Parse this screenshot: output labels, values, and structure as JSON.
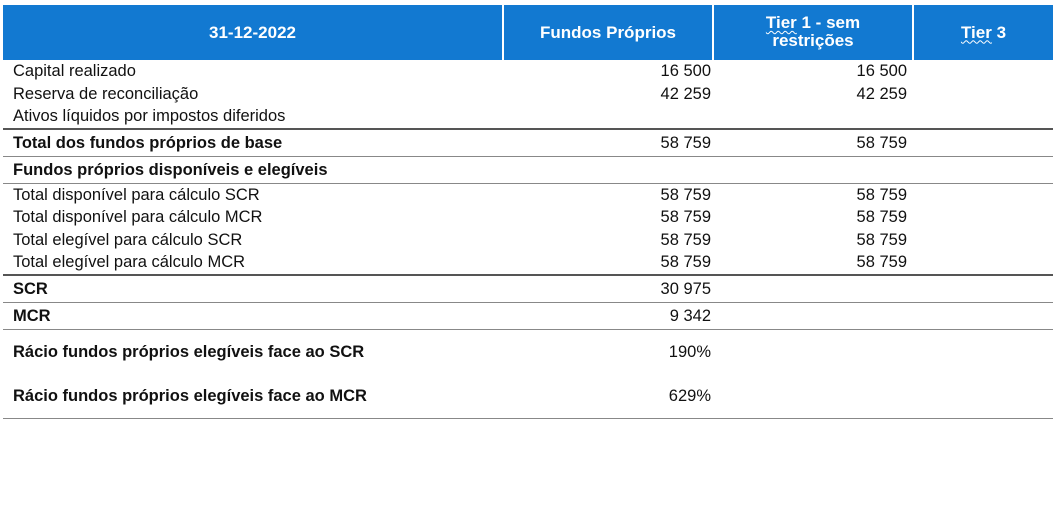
{
  "header": {
    "date": "31-12-2022",
    "col_fundos": "Fundos Próprios",
    "col_tier1": "Tier 1 - sem restrições",
    "col_tier3": "Tier 3"
  },
  "rows": [
    {
      "label": "Capital realizado",
      "fundos": "16 500",
      "tier1": "16 500",
      "tier3": ""
    },
    {
      "label": "Reserva de reconciliação",
      "fundos": "42 259",
      "tier1": "42 259",
      "tier3": ""
    },
    {
      "label": "Ativos líquidos por impostos diferidos",
      "fundos": "",
      "tier1": "",
      "tier3": ""
    },
    {
      "label": "Total dos fundos próprios de base",
      "fundos": "58 759",
      "tier1": "58 759",
      "tier3": ""
    },
    {
      "label": "Fundos próprios disponíveis e elegíveis",
      "fundos": "",
      "tier1": "",
      "tier3": ""
    },
    {
      "label": "Total disponível para cálculo SCR",
      "fundos": "58 759",
      "tier1": "58 759",
      "tier3": ""
    },
    {
      "label": "Total disponível para cálculo MCR",
      "fundos": "58 759",
      "tier1": "58 759",
      "tier3": ""
    },
    {
      "label": "Total elegível para cálculo SCR",
      "fundos": "58 759",
      "tier1": "58 759",
      "tier3": ""
    },
    {
      "label": "Total elegível para cálculo MCR",
      "fundos": "58 759",
      "tier1": "58 759",
      "tier3": ""
    },
    {
      "label": "SCR",
      "fundos": "30 975",
      "tier1": "",
      "tier3": ""
    },
    {
      "label": "MCR",
      "fundos": "9 342",
      "tier1": "",
      "tier3": ""
    },
    {
      "label": "Rácio fundos próprios elegíveis face ao SCR",
      "fundos": "190%",
      "tier1": "",
      "tier3": ""
    },
    {
      "label": "Rácio fundos próprios elegíveis face ao MCR",
      "fundos": "629%",
      "tier1": "",
      "tier3": ""
    }
  ]
}
